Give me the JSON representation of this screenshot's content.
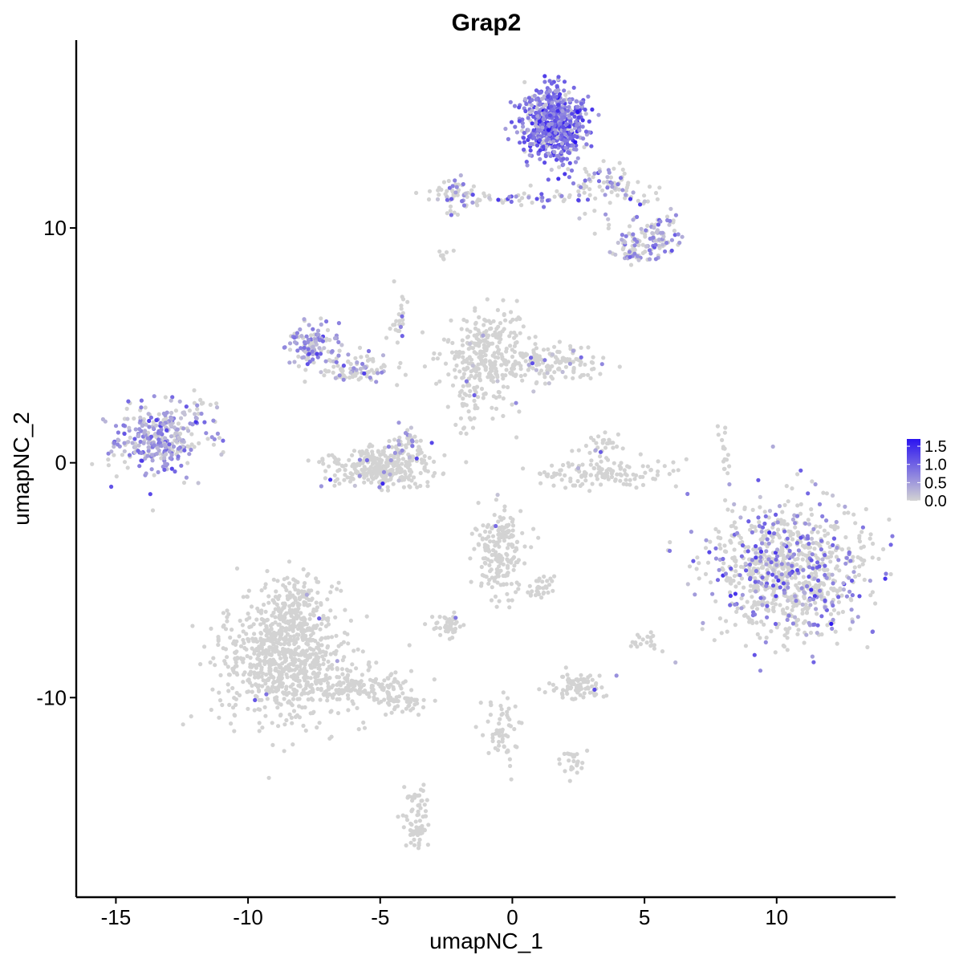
{
  "chart_data": {
    "type": "scatter",
    "title": "Grap2",
    "xlabel": "umapNC_1",
    "ylabel": "umapNC_2",
    "xlim": [
      -16.5,
      14.5
    ],
    "ylim": [
      -18.5,
      18.0
    ],
    "x_ticks": [
      -15,
      -10,
      -5,
      0,
      5,
      10
    ],
    "x_tick_labels": [
      "-15",
      "-10",
      "-5",
      "0",
      "5",
      "10"
    ],
    "y_ticks": [
      -10,
      0,
      10
    ],
    "y_tick_labels": [
      "-10",
      "0",
      "10"
    ],
    "grid": false,
    "legend": {
      "placement": "right",
      "type": "colorbar",
      "labels": [
        "1.5",
        "1.0",
        "0.5",
        "0.0"
      ],
      "values": [
        1.5,
        1.0,
        0.5,
        0.0
      ],
      "min": 0.0,
      "max": 1.7
    },
    "colors": {
      "low": "#d3d3d3",
      "high": "#2b14f0"
    },
    "clusters": [
      {
        "cx": -13.3,
        "cy": 1.0,
        "sx": 0.85,
        "sy": 0.75,
        "n": 320,
        "expr_frac": 0.7,
        "expr_mean": 0.55
      },
      {
        "cx": -11.8,
        "cy": 2.4,
        "sx": 0.3,
        "sy": 0.25,
        "n": 14,
        "expr_frac": 0.2,
        "expr_mean": 0.4
      },
      {
        "cx": -8.6,
        "cy": -8.4,
        "sx": 1.2,
        "sy": 1.3,
        "n": 800,
        "expr_frac": 0.003,
        "expr_mean": 0.5
      },
      {
        "cx": -8.2,
        "cy": -6.0,
        "sx": 0.5,
        "sy": 0.7,
        "n": 120,
        "expr_frac": 0.01,
        "expr_mean": 0.6
      },
      {
        "cx": -5.8,
        "cy": -9.5,
        "sx": 1.0,
        "sy": 0.35,
        "n": 150,
        "expr_frac": 0.0,
        "expr_mean": 0.0
      },
      {
        "cx": -4.2,
        "cy": -10.2,
        "sx": 0.5,
        "sy": 0.2,
        "n": 45,
        "expr_frac": 0.0,
        "expr_mean": 0.0
      },
      {
        "cx": -3.6,
        "cy": -15.2,
        "sx": 0.25,
        "sy": 0.7,
        "n": 70,
        "expr_frac": 0.0,
        "expr_mean": 0.0
      },
      {
        "cx": -5.0,
        "cy": -0.2,
        "sx": 1.0,
        "sy": 0.45,
        "n": 320,
        "expr_frac": 0.02,
        "expr_mean": 0.5
      },
      {
        "cx": -3.9,
        "cy": 0.8,
        "sx": 0.35,
        "sy": 0.35,
        "n": 40,
        "expr_frac": 0.25,
        "expr_mean": 0.6
      },
      {
        "cx": -7.5,
        "cy": 5.0,
        "sx": 0.45,
        "sy": 0.5,
        "n": 110,
        "expr_frac": 0.65,
        "expr_mean": 0.55
      },
      {
        "cx": -6.0,
        "cy": 4.0,
        "sx": 0.8,
        "sy": 0.35,
        "n": 90,
        "expr_frac": 0.3,
        "expr_mean": 0.5
      },
      {
        "cx": -4.3,
        "cy": 6.0,
        "sx": 0.15,
        "sy": 0.8,
        "n": 25,
        "expr_frac": 0.1,
        "expr_mean": 0.5
      },
      {
        "cx": -1.0,
        "cy": 4.5,
        "sx": 0.7,
        "sy": 1.0,
        "n": 280,
        "expr_frac": 0.02,
        "expr_mean": 0.5
      },
      {
        "cx": 1.2,
        "cy": 4.3,
        "sx": 1.1,
        "sy": 0.4,
        "n": 160,
        "expr_frac": 0.08,
        "expr_mean": 0.5
      },
      {
        "cx": -1.8,
        "cy": 2.4,
        "sx": 0.3,
        "sy": 0.6,
        "n": 30,
        "expr_frac": 0.0,
        "expr_mean": 0.0
      },
      {
        "cx": 1.6,
        "cy": 14.4,
        "sx": 0.6,
        "sy": 0.75,
        "n": 650,
        "expr_frac": 0.88,
        "expr_mean": 0.85
      },
      {
        "cx": -2.1,
        "cy": 11.5,
        "sx": 0.5,
        "sy": 0.35,
        "n": 60,
        "expr_frac": 0.35,
        "expr_mean": 0.5
      },
      {
        "cx": 0.5,
        "cy": 11.2,
        "sx": 1.2,
        "sy": 0.2,
        "n": 45,
        "expr_frac": 0.5,
        "expr_mean": 0.7
      },
      {
        "cx": 3.5,
        "cy": 11.8,
        "sx": 0.9,
        "sy": 0.5,
        "n": 90,
        "expr_frac": 0.4,
        "expr_mean": 0.6
      },
      {
        "cx": 5.2,
        "cy": 9.6,
        "sx": 0.65,
        "sy": 0.5,
        "n": 120,
        "expr_frac": 0.55,
        "expr_mean": 0.55
      },
      {
        "cx": 4.6,
        "cy": 8.9,
        "sx": 0.3,
        "sy": 0.3,
        "n": 25,
        "expr_frac": 0.3,
        "expr_mean": 0.5
      },
      {
        "cx": 3.3,
        "cy": -0.4,
        "sx": 1.2,
        "sy": 0.3,
        "n": 130,
        "expr_frac": 0.02,
        "expr_mean": 0.5
      },
      {
        "cx": 3.4,
        "cy": 0.6,
        "sx": 0.4,
        "sy": 0.3,
        "n": 30,
        "expr_frac": 0.15,
        "expr_mean": 0.5
      },
      {
        "cx": 10.5,
        "cy": -4.6,
        "sx": 1.5,
        "sy": 1.4,
        "n": 900,
        "expr_frac": 0.28,
        "expr_mean": 0.75
      },
      {
        "cx": -0.5,
        "cy": -3.8,
        "sx": 0.5,
        "sy": 0.9,
        "n": 200,
        "expr_frac": 0.01,
        "expr_mean": 0.5
      },
      {
        "cx": 1.0,
        "cy": -5.3,
        "sx": 0.3,
        "sy": 0.25,
        "n": 30,
        "expr_frac": 0.0,
        "expr_mean": 0.0
      },
      {
        "cx": -2.5,
        "cy": -6.9,
        "sx": 0.35,
        "sy": 0.25,
        "n": 40,
        "expr_frac": 0.05,
        "expr_mean": 0.5
      },
      {
        "cx": 2.5,
        "cy": -9.5,
        "sx": 0.55,
        "sy": 0.25,
        "n": 80,
        "expr_frac": 0.02,
        "expr_mean": 0.5
      },
      {
        "cx": 5.0,
        "cy": -7.5,
        "sx": 0.3,
        "sy": 0.2,
        "n": 20,
        "expr_frac": 0.0,
        "expr_mean": 0.0
      },
      {
        "cx": -0.4,
        "cy": -11.3,
        "sx": 0.3,
        "sy": 0.8,
        "n": 60,
        "expr_frac": 0.0,
        "expr_mean": 0.0
      },
      {
        "cx": 2.3,
        "cy": -12.7,
        "sx": 0.3,
        "sy": 0.3,
        "n": 25,
        "expr_frac": 0.0,
        "expr_mean": 0.0
      },
      {
        "cx": 8.0,
        "cy": 0.3,
        "sx": 0.1,
        "sy": 0.6,
        "n": 15,
        "expr_frac": 0.0,
        "expr_mean": 0.0
      },
      {
        "cx": -2.7,
        "cy": 8.8,
        "sx": 0.25,
        "sy": 0.12,
        "n": 8,
        "expr_frac": 0.0,
        "expr_mean": 0.0
      }
    ]
  }
}
